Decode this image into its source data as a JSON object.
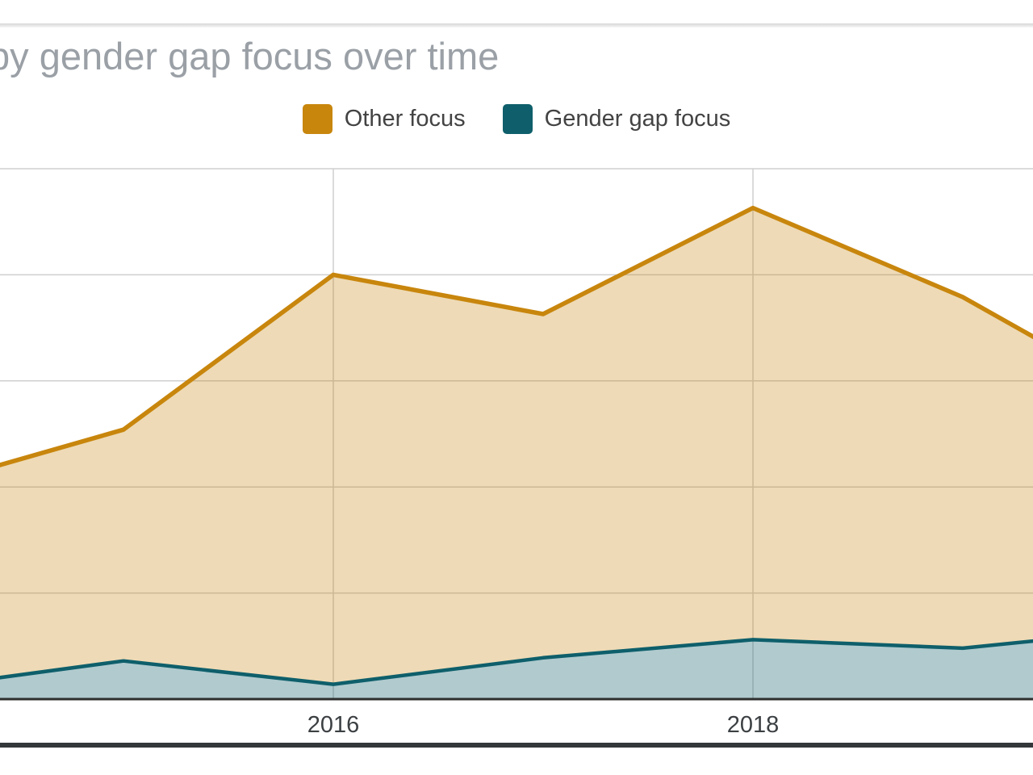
{
  "chart": {
    "title_visible": "by gender gap focus over time",
    "title_clipped_left": true,
    "title_color": "#9AA0A6",
    "legend": {
      "items": [
        {
          "label": "Other focus",
          "color": "#C8860D"
        },
        {
          "label": "Gender gap focus",
          "color": "#0E5F6B"
        }
      ]
    },
    "x_axis": {
      "tick_labels": [
        "2016",
        "2018"
      ]
    }
  },
  "chart_data": {
    "type": "area",
    "stacked": true,
    "title": "by gender gap focus over time",
    "x": [
      2014.4,
      2015,
      2016,
      2017,
      2018,
      2019,
      2019.35
    ],
    "x_visible_ticks": [
      2016,
      2018
    ],
    "x_tick_labels": [
      "2016",
      "2018"
    ],
    "series": [
      {
        "name": "Gender gap focus",
        "color": "#0E5F6B",
        "values": [
          0.2,
          0.36,
          0.14,
          0.39,
          0.56,
          0.48,
          0.55
        ]
      },
      {
        "name": "Other focus",
        "color": "#C8860D",
        "values": [
          2.0,
          2.18,
          3.86,
          3.24,
          4.07,
          3.31,
          2.85
        ]
      }
    ],
    "y_units": "gridline units (y-axis labels cropped out of view)",
    "ylim": [
      0,
      5
    ],
    "grid": true,
    "legend_position": "top",
    "crop_note": "plot is cropped at left and right edges; first and last x values are the visible edges",
    "gridline_color": "#CFCFCF",
    "axis_line_color": "#2E2E2E",
    "fill_opacity": {
      "other_focus": 0.3,
      "gender_gap_focus": 0.33
    }
  }
}
